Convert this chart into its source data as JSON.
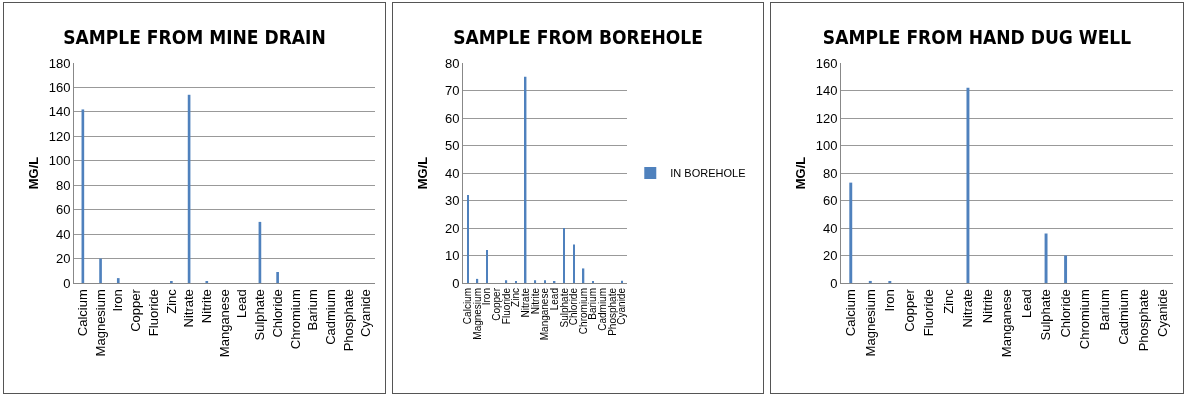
{
  "chart_data": [
    {
      "type": "bar",
      "title": "SAMPLE FROM MINE DRAIN",
      "ylabel": "MG/L",
      "categories": [
        "Calcium",
        "Magnesium",
        "Iron",
        "Copper",
        "Fluoride",
        "Zinc",
        "Nitrate",
        "Nitrite",
        "Manganese",
        "Lead",
        "Sulphate",
        "Chloride",
        "Chromium",
        "Barium",
        "Cadmium",
        "Phosphate",
        "Cyanide"
      ],
      "series": [
        {
          "color": "#4f81bd",
          "values": [
            142,
            20,
            4,
            0,
            0,
            1,
            154,
            1,
            0,
            0,
            50,
            9,
            0,
            0,
            0,
            0,
            0
          ]
        }
      ],
      "ylim": [
        0,
        180
      ],
      "yticks": [
        0,
        20,
        40,
        60,
        80,
        100,
        120,
        140,
        160,
        180
      ],
      "grid": "y",
      "legend": false
    },
    {
      "type": "bar",
      "title": "SAMPLE FROM BOREHOLE",
      "ylabel": "MG/L",
      "categories": [
        "Calcium",
        "Magnesium",
        "Iron",
        "Copper",
        "Fluoride",
        "Zinc",
        "Nitrate",
        "Nitrite",
        "Manganese",
        "Lead",
        "Sulphate",
        "Chloride",
        "Chromium",
        "Barium",
        "Cadmium",
        "Phosphate",
        "Cyanide"
      ],
      "series": [
        {
          "name": "IN BOREHOLE",
          "color": "#4f81bd",
          "values": [
            32,
            1.5,
            12,
            0,
            1,
            0.5,
            75,
            1,
            1,
            0.5,
            20,
            14,
            5.3,
            0.5,
            0,
            0,
            0.8
          ]
        }
      ],
      "ylim": [
        0,
        80
      ],
      "yticks": [
        0,
        10,
        20,
        30,
        40,
        50,
        60,
        70,
        80
      ],
      "grid": "y",
      "legend": "right"
    },
    {
      "type": "bar",
      "title": "SAMPLE FROM HAND DUG WELL",
      "ylabel": "MG/L",
      "categories": [
        "Calcium",
        "Magnesium",
        "Iron",
        "Copper",
        "Fluoride",
        "Zinc",
        "Nitrate",
        "Nitrite",
        "Manganese",
        "Lead",
        "Sulphate",
        "Chloride",
        "Chromium",
        "Barium",
        "Cadmium",
        "Phosphate",
        "Cyanide"
      ],
      "series": [
        {
          "color": "#4f81bd",
          "values": [
            73,
            1.5,
            1,
            0,
            0,
            0,
            142,
            0,
            0,
            0,
            36,
            20,
            0,
            0,
            0,
            0,
            0
          ]
        }
      ],
      "ylim": [
        0,
        160
      ],
      "yticks": [
        0,
        20,
        40,
        60,
        80,
        100,
        120,
        140,
        160
      ],
      "grid": "y",
      "legend": false
    }
  ]
}
